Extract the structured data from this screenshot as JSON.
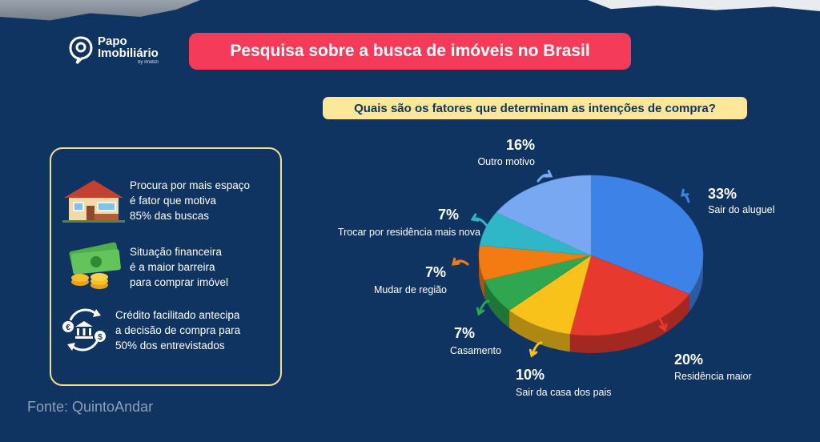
{
  "header": {
    "brand_line1": "Papo",
    "brand_line2": "Imobiliário",
    "brand_by": "by Imobzi",
    "title": "Pesquisa sobre a busca de imóveis no Brasil"
  },
  "question": "Quais são os fatores que determinam as intenções de compra?",
  "facts": [
    {
      "icon": "house-icon",
      "lines": [
        "Procura por mais espaço",
        "é fator que motiva",
        "85% das buscas"
      ]
    },
    {
      "icon": "money-coins-icon",
      "lines": [
        "Situação financeira",
        "é a maior barreira",
        "para comprar imóvel"
      ]
    },
    {
      "icon": "bank-exchange-icon",
      "lines": [
        "Crédito facilitado antecipa",
        "a decisão de compra para",
        "50% dos entrevistados"
      ]
    }
  ],
  "source": "Fonte: QuintoAndar",
  "chart_data": {
    "type": "pie",
    "title": "Quais são os fatores que determinam as intenções de compra?",
    "slices": [
      {
        "label": "Sair do aluguel",
        "value": 33,
        "pct_text": "33%",
        "color": "#3d82e6"
      },
      {
        "label": "Residência maior",
        "value": 20,
        "pct_text": "20%",
        "color": "#e8392f"
      },
      {
        "label": "Sair da casa dos pais",
        "value": 10,
        "pct_text": "10%",
        "color": "#f8c21a"
      },
      {
        "label": "Casamento",
        "value": 7,
        "pct_text": "7%",
        "color": "#2fa650"
      },
      {
        "label": "Mudar de região",
        "value": 7,
        "pct_text": "7%",
        "color": "#f47a12"
      },
      {
        "label": "Trocar por residência mais nova",
        "value": 7,
        "pct_text": "7%",
        "color": "#2fb7c7"
      },
      {
        "label": "Outro motivo",
        "value": 16,
        "pct_text": "16%",
        "color": "#78a8f2"
      }
    ],
    "accent_arrow_colors": [
      "#3d82e6",
      "#e8392f",
      "#f8c21a",
      "#2fa650",
      "#f47a12",
      "#2fb7c7",
      "#78a8f2"
    ]
  }
}
